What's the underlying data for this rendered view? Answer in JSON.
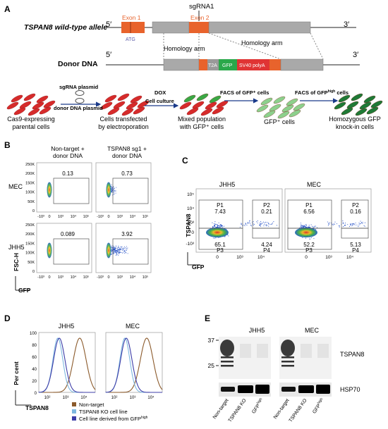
{
  "panel_letters": {
    "a": "A",
    "b": "B",
    "c": "C",
    "d": "D",
    "e": "E"
  },
  "panel_a": {
    "sgrna": "sgRNA1",
    "five_prime": "5′",
    "three_prime": "3′",
    "allele_label": "TSPAN8 wild-type allele",
    "exon1": "Exon 1",
    "exon2": "Exon 2",
    "atg": "ATG",
    "donor_label": "Donor DNA",
    "homology_arm": "Homology arm",
    "t2a": "T2A",
    "gfp": "GFP",
    "sv40": "SV40 polyA",
    "sgrna_plasmid": "sgRNA plasmid",
    "donor_plasmid": "donor DNA plasmid",
    "dox": "DOX",
    "cell_culture": "Cell culture",
    "facs1": "FACS of GFP⁺ cells",
    "facs2_pre": "FACS of GFP",
    "facs2_sup": "high",
    "facs2_post": " cells",
    "stage1": [
      "Cas9-expressing",
      "parental cells"
    ],
    "stage2": [
      "Cells transfected",
      "by electroporation"
    ],
    "stage3": [
      "Mixed population",
      "with GFP⁺ cells"
    ],
    "stage4": [
      "GFP⁺ cells"
    ],
    "stage5": [
      "Homozygous GFP",
      "knock-in cells"
    ]
  },
  "panel_b": {
    "col1": [
      "Non-target +",
      "donor DNA"
    ],
    "col2": [
      "TSPAN8 sg1 +",
      "donor DNA"
    ],
    "row1": "MEC",
    "row2": "JHH5",
    "y_axis": "FSC-H",
    "x_axis": "GFP",
    "y_ticks": [
      "250K",
      "200K",
      "150K",
      "100K",
      "50K",
      "0"
    ],
    "x_ticks": [
      "-10³",
      "0",
      "10³",
      "10⁴",
      "10⁵"
    ],
    "gate_values": {
      "mec_nt": "0.13",
      "mec_sg": "0.73",
      "jhh5_nt": "0.089",
      "jhh5_sg": "3.92"
    }
  },
  "panel_c": {
    "titles": [
      "JHH5",
      "MEC"
    ],
    "y_axis": "TSPAN8",
    "x_axis": "GFP",
    "y_ticks": [
      "10⁵",
      "10⁴",
      "10³",
      "0",
      "-10³"
    ],
    "x_ticks": [
      "0",
      "10³",
      "10⁴"
    ],
    "jhh5": {
      "p1": "P1",
      "p1v": "7.43",
      "p2": "P2",
      "p2v": "0.21",
      "p3": "P3",
      "p3v": "65.1",
      "p4": "P4",
      "p4v": "4.24"
    },
    "mec": {
      "p1": "P1",
      "p1v": "6.56",
      "p2": "P2",
      "p2v": "0.16",
      "p3": "P3",
      "p3v": "52.2",
      "p4": "P4",
      "p4v": "5.13"
    }
  },
  "panel_d": {
    "titles": [
      "JHH5",
      "MEC"
    ],
    "y_axis": "Per cent",
    "x_axis": "TSPAN8",
    "y_ticks": [
      "100",
      "80",
      "60",
      "40",
      "20",
      "0"
    ],
    "x_ticks": [
      "10²",
      "10³",
      "10⁴"
    ],
    "legend": [
      {
        "label": "Non-target",
        "color": "#8b5a2b"
      },
      {
        "label": "TSPAN8 KO cell line",
        "color": "#7fb8e0"
      },
      {
        "label": "Cell line derived from GFP",
        "sup": "high",
        "color": "#3d3da8"
      }
    ]
  },
  "panel_e": {
    "titles": [
      "JHH5",
      "MEC"
    ],
    "mw": [
      "37",
      "25"
    ],
    "band_top": "TSPAN8",
    "band_bottom": "HSP70",
    "lanes": [
      "Non-target",
      "TSPAN8 KO",
      "GFP"
    ],
    "lane_sup": "high"
  },
  "colors": {
    "exon": "#e8632c",
    "gene_gray": "#a9a9a9",
    "t2a": "#9a9a9a",
    "gfp": "#2aa84a",
    "sv40": "#e03434",
    "gate": "#666666"
  }
}
